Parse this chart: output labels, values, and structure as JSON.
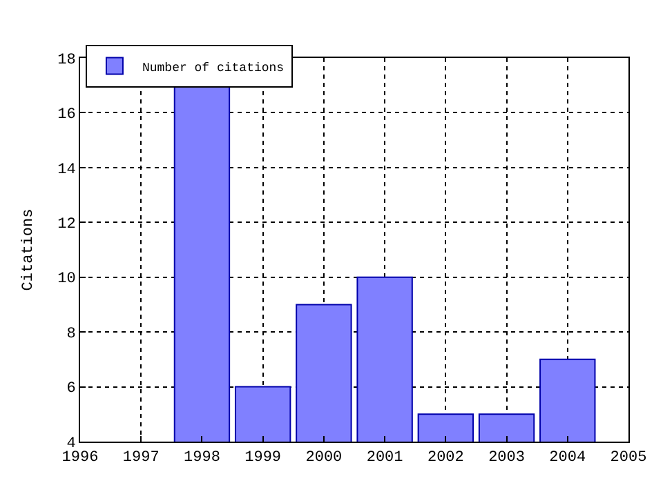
{
  "chart_data": {
    "type": "bar",
    "ylabel": "Citations",
    "x": [
      1998,
      1999,
      2000,
      2001,
      2002,
      2003,
      2004
    ],
    "series": [
      {
        "name": "Number of citations",
        "color": "#8080ff",
        "values": [
          17,
          6,
          9,
          10,
          5,
          5,
          7
        ]
      }
    ],
    "xlim": [
      1996,
      2005
    ],
    "xticks": [
      1996,
      1997,
      1998,
      1999,
      2000,
      2001,
      2002,
      2003,
      2004,
      2005
    ],
    "ylim": [
      4,
      18
    ],
    "yticks": [
      4,
      6,
      8,
      10,
      12,
      14,
      16,
      18
    ],
    "grid": true,
    "legend": "top left"
  }
}
